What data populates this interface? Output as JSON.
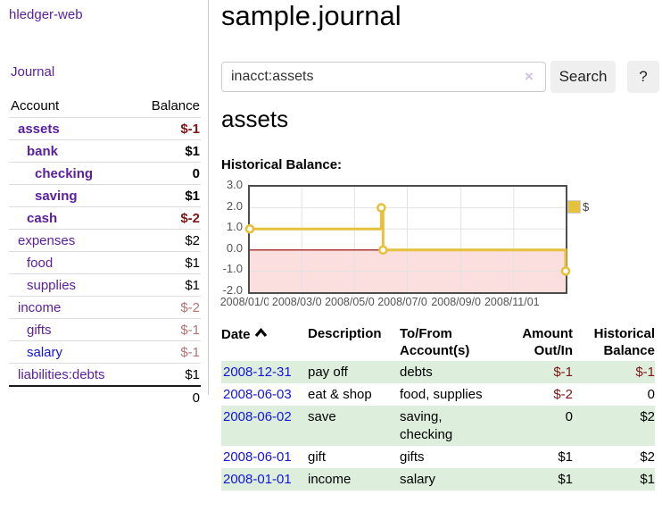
{
  "sidebar": {
    "brand": "hledger-web",
    "journal_link": "Journal",
    "accounts_table": {
      "headers": {
        "account": "Account",
        "balance": "Balance"
      },
      "rows": [
        {
          "name": "assets",
          "balance": "$-1"
        },
        {
          "name": "bank",
          "balance": "$1"
        },
        {
          "name": "checking",
          "balance": "0"
        },
        {
          "name": "saving",
          "balance": "$1"
        },
        {
          "name": "cash",
          "balance": "$-2"
        },
        {
          "name": "expenses",
          "balance": "$2"
        },
        {
          "name": "food",
          "balance": "$1"
        },
        {
          "name": "supplies",
          "balance": "$1"
        },
        {
          "name": "income",
          "balance": "$-2"
        },
        {
          "name": "gifts",
          "balance": "$-1"
        },
        {
          "name": "salary",
          "balance": "$-1"
        },
        {
          "name": "liabilities:debts",
          "balance": "$1"
        }
      ],
      "total": "0"
    }
  },
  "main": {
    "title": "sample.journal",
    "search": {
      "value": "inacct:assets",
      "clear_icon": "×",
      "search_button": "Search",
      "help_button": "?"
    },
    "account_heading": "assets",
    "chart_title": "Historical Balance:"
  },
  "chart_data": {
    "type": "line",
    "step": true,
    "title": "Historical Balance:",
    "legend": "$",
    "series": [
      {
        "name": "$",
        "color": "#e6c13d",
        "points": [
          {
            "date": "2008-01-01",
            "value": 1
          },
          {
            "date": "2008-06-01",
            "value": 2
          },
          {
            "date": "2008-06-03",
            "value": 0
          },
          {
            "date": "2008-12-31",
            "value": -1
          }
        ]
      }
    ],
    "x_range": [
      "2008-01-01",
      "2008-12-31"
    ],
    "ylim": [
      -2,
      3
    ],
    "yticks": [
      {
        "value": 3,
        "label": "3.0"
      },
      {
        "value": 2,
        "label": "2.0"
      },
      {
        "value": 1,
        "label": "1.0"
      },
      {
        "value": 0,
        "label": "0.0"
      },
      {
        "value": -1,
        "label": "-1.0"
      },
      {
        "value": -2,
        "label": "-2.0"
      }
    ],
    "xticks": [
      {
        "date": "2008-01-01",
        "label": "2008/01/01"
      },
      {
        "date": "2008-03-01",
        "label": "2008/03/01"
      },
      {
        "date": "2008-05-01",
        "label": "2008/05/01"
      },
      {
        "date": "2008-07-01",
        "label": "2008/07/01"
      },
      {
        "date": "2008-09-01",
        "label": "2008/09/01"
      },
      {
        "date": "2008-11-01",
        "label": "2008/11/01"
      }
    ],
    "grid": true,
    "legend_position": "top-right",
    "zero_line_color": "#8b0000",
    "below_zero_fill": "#fbdede"
  },
  "register_table": {
    "headers": {
      "date": "Date",
      "sort_indicator": "asc",
      "description": "Description",
      "tofrom": "To/From Account(s)",
      "amount": "Amount Out/In",
      "balance": "Historical Balance"
    },
    "rows": [
      {
        "date": "2008-12-31",
        "description": "pay off",
        "tofrom": "debts",
        "amount": "$-1",
        "balance": "$-1"
      },
      {
        "date": "2008-06-03",
        "description": "eat & shop",
        "tofrom": "food, supplies",
        "amount": "$-2",
        "balance": "0"
      },
      {
        "date": "2008-06-02",
        "description": "save",
        "tofrom": "saving, checking",
        "amount": "0",
        "balance": "$2"
      },
      {
        "date": "2008-06-01",
        "description": "gift",
        "tofrom": "gifts",
        "amount": "$1",
        "balance": "$2"
      },
      {
        "date": "2008-01-01",
        "description": "income",
        "tofrom": "salary",
        "amount": "$1",
        "balance": "$1"
      }
    ]
  },
  "colors": {
    "link_purple": "#5a1f9e",
    "link_blue": "#1414dd",
    "negative_strong": "#801515",
    "negative_soft": "#b07575",
    "row_green": "#ddeedd",
    "series_gold": "#e6c13d",
    "zero_line": "#8b0000",
    "below_zero_fill": "#fbdede",
    "chart_border": "#4d4d4d"
  }
}
